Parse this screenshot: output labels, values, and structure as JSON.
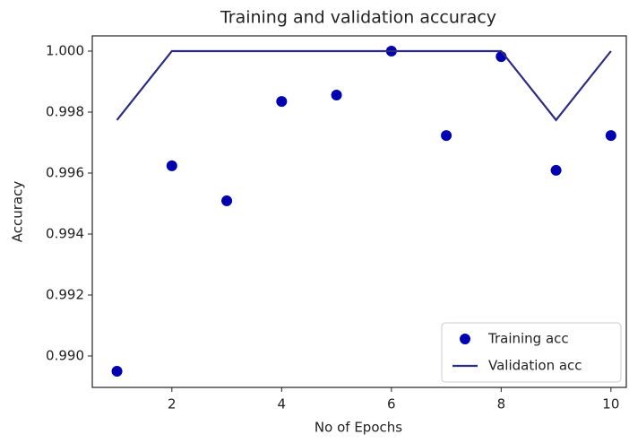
{
  "chart_data": {
    "type": "line",
    "title": "Training and validation accuracy",
    "x_label": "No of Epochs",
    "y_label": "Accuracy",
    "x": [
      1,
      2,
      3,
      4,
      5,
      6,
      7,
      8,
      9,
      10
    ],
    "series": [
      {
        "name": "Training acc",
        "color": "#0000b0",
        "marker": "dot",
        "values": [
          0.9895,
          0.99624,
          0.99509,
          0.99835,
          0.99856,
          1.0,
          0.99723,
          0.99982,
          0.99609,
          0.99723
        ]
      },
      {
        "name": "Validation acc",
        "color": "#2b2b80",
        "marker": "line",
        "values": [
          0.99774,
          1.0,
          1.0,
          1.0,
          1.0,
          1.0,
          1.0,
          1.0,
          0.99774,
          1.0
        ]
      }
    ],
    "xlim": [
      0.55,
      10.28
    ],
    "ylim": [
      0.98897,
      1.0005
    ],
    "xticks": [
      2,
      4,
      6,
      8,
      10
    ],
    "yticks": [
      {
        "value": 0.99,
        "label": "0.990"
      },
      {
        "value": 0.992,
        "label": "0.992"
      },
      {
        "value": 0.994,
        "label": "0.994"
      },
      {
        "value": 0.996,
        "label": "0.996"
      },
      {
        "value": 0.998,
        "label": "0.998"
      },
      {
        "value": 1.0,
        "label": "1.000"
      }
    ],
    "legend": "lower right"
  }
}
